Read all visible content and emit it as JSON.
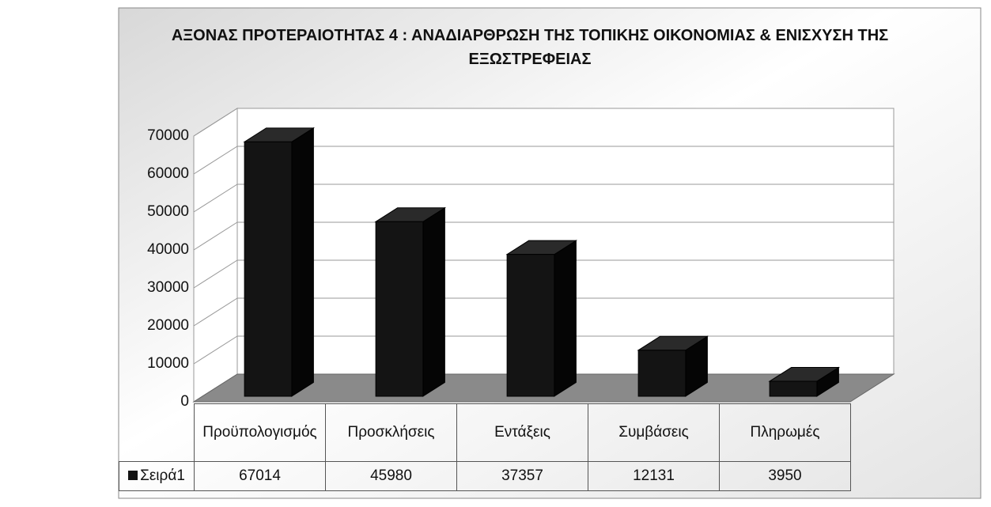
{
  "chart_data": {
    "type": "bar3d",
    "title": "ΑΞΟΝΑΣ ΠΡΟΤΕΡΑΙΟΤΗΤΑΣ 4 : ΑΝΑΔΙΑΡΘΡΩΣΗ ΤΗΣ ΤΟΠΙΚΗΣ ΟΙΚΟΝΟΜΙΑΣ & ΕΝΙΣΧΥΣΗ ΤΗΣ ΕΞΩΣΤΡΕΦΕΙΑΣ",
    "categories": [
      "Προϋπολογισμός",
      "Προσκλήσεις",
      "Εντάξεις",
      "Συμβάσεις",
      "Πληρωμές"
    ],
    "series": [
      {
        "name": "Σειρά1",
        "color": "#141414",
        "values": [
          67014,
          45980,
          37357,
          12131,
          3950
        ]
      }
    ],
    "ylim": [
      0,
      70000
    ],
    "yticks": [
      0,
      10000,
      20000,
      30000,
      40000,
      50000,
      60000,
      70000
    ],
    "grid": true
  }
}
